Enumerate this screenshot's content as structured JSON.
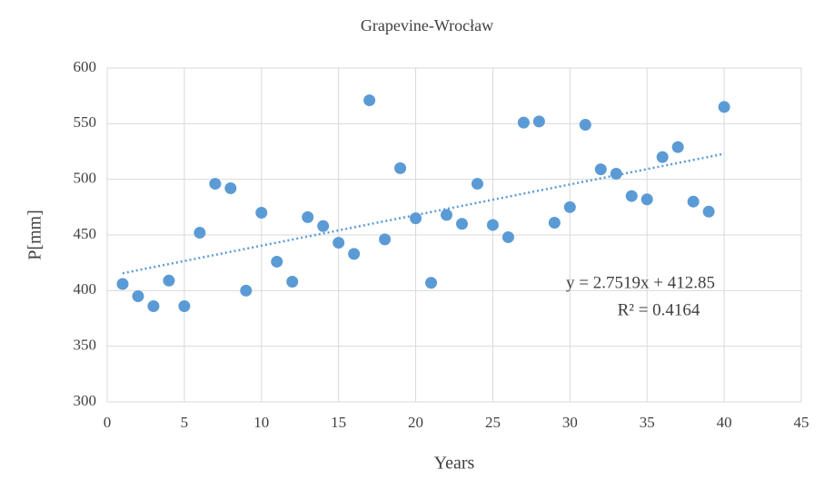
{
  "chart_data": {
    "type": "scatter",
    "title": "Grapevine-Wrocław",
    "x_label": "Years",
    "y_label": "P[mm]",
    "series": [
      {
        "name": "P",
        "color": "#5b9bd5",
        "x": [
          1,
          2,
          3,
          4,
          5,
          6,
          7,
          8,
          9,
          10,
          11,
          12,
          13,
          14,
          15,
          16,
          17,
          18,
          19,
          20,
          21,
          22,
          23,
          24,
          25,
          26,
          27,
          28,
          29,
          30,
          31,
          32,
          33,
          34,
          35,
          36,
          37,
          38,
          39,
          40
        ],
        "values": [
          406,
          395,
          386,
          409,
          386,
          452,
          496,
          492,
          400,
          470,
          426,
          408,
          466,
          458,
          443,
          433,
          571,
          446,
          510,
          465,
          407,
          468,
          460,
          496,
          459,
          448,
          551,
          552,
          461,
          475,
          549,
          509,
          505,
          485,
          482,
          520,
          529,
          480,
          471,
          565
        ]
      }
    ],
    "trendline": {
      "slope": 2.7519,
      "intercept": 412.85,
      "color": "#5b9bd5"
    },
    "annotations": [
      "y = 2.7519x + 412.85",
      "R² = 0.4164"
    ],
    "xlim": [
      0,
      45
    ],
    "xticks": [
      0,
      5,
      10,
      15,
      20,
      25,
      30,
      35,
      40,
      45
    ],
    "ylim": [
      300,
      600
    ],
    "yticks": [
      300,
      350,
      400,
      450,
      500,
      550,
      600
    ],
    "grid": true
  }
}
